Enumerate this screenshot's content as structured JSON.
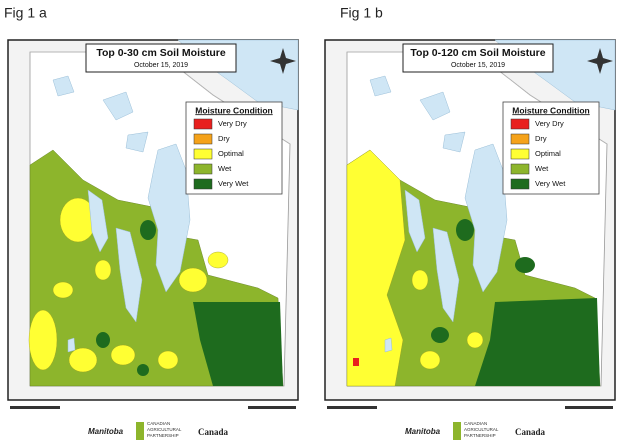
{
  "figures": [
    {
      "label": "Fig 1 a",
      "title": "Top 0-30 cm Soil Moisture",
      "date": "October 15, 2019",
      "legend": {
        "title": "Moisture Condition",
        "items": [
          {
            "name": "Very Dry",
            "color": "#e8201e"
          },
          {
            "name": "Dry",
            "color": "#f5a21a"
          },
          {
            "name": "Optimal",
            "color": "#ffff33"
          },
          {
            "name": "Wet",
            "color": "#8db52c"
          },
          {
            "name": "Very Wet",
            "color": "#1e6b1e"
          }
        ]
      },
      "logos": {
        "province": "Manitoba",
        "partnership": [
          "CANADIAN",
          "AGRICULTURAL",
          "PARTNERSHIP"
        ],
        "federal": "Canada"
      }
    },
    {
      "label": "Fig 1 b",
      "title": "Top 0-120 cm Soil Moisture",
      "date": "October 15, 2019",
      "legend": {
        "title": "Moisture Condition",
        "items": [
          {
            "name": "Very Dry",
            "color": "#e8201e"
          },
          {
            "name": "Dry",
            "color": "#f5a21a"
          },
          {
            "name": "Optimal",
            "color": "#ffff33"
          },
          {
            "name": "Wet",
            "color": "#8db52c"
          },
          {
            "name": "Very Wet",
            "color": "#1e6b1e"
          }
        ]
      },
      "logos": {
        "province": "Manitoba",
        "partnership": [
          "CANADIAN",
          "AGRICULTURAL",
          "PARTNERSHIP"
        ],
        "federal": "Canada"
      }
    }
  ]
}
